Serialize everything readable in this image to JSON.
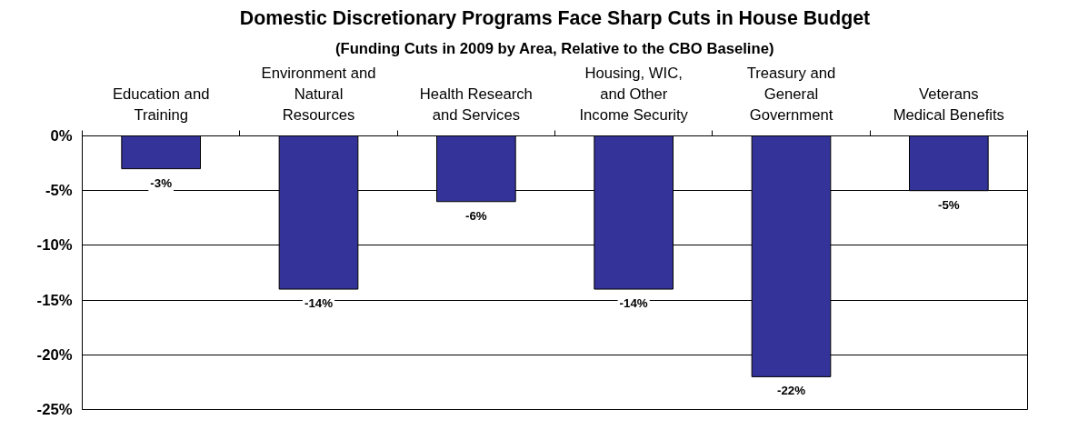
{
  "chart_data": {
    "type": "bar",
    "title": "Domestic Discretionary Programs Face Sharp Cuts in House Budget",
    "subtitle": "(Funding Cuts in 2009 by Area, Relative to the CBO Baseline)",
    "categories": [
      "Education and\nTraining",
      "Environment and\nNatural\nResources",
      "Health Research\nand Services",
      "Housing, WIC,\nand Other\nIncome Security",
      "Treasury and\nGeneral\nGovernment",
      "Veterans\nMedical Benefits"
    ],
    "values": [
      -3,
      -14,
      -6,
      -14,
      -22,
      -5
    ],
    "value_labels": [
      "-3%",
      "-14%",
      "-6%",
      "-14%",
      "-22%",
      "-5%"
    ],
    "color": "#333399",
    "ylim": [
      -25,
      0
    ],
    "yticks": [
      {
        "value": 0,
        "label": "0%"
      },
      {
        "value": -5,
        "label": "-5%"
      },
      {
        "value": -10,
        "label": "-10%"
      },
      {
        "value": -15,
        "label": "-15%"
      },
      {
        "value": -20,
        "label": "-20%"
      },
      {
        "value": -25,
        "label": "-25%"
      }
    ],
    "grid": "y"
  }
}
